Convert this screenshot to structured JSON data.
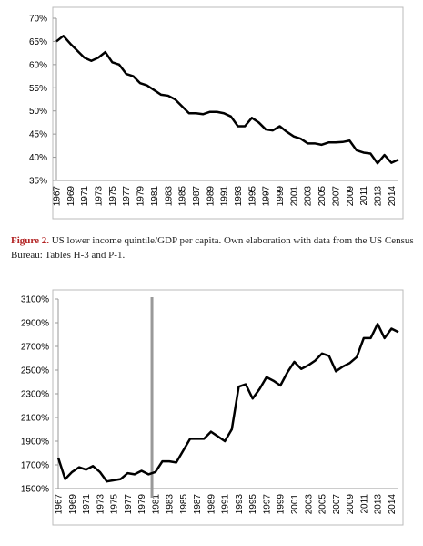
{
  "chart_data": [
    {
      "type": "line",
      "color": "#000000",
      "categories": [
        "1967",
        null,
        "1969",
        null,
        "1971",
        null,
        "1973",
        null,
        "1975",
        null,
        "1977",
        null,
        "1979",
        null,
        "1981",
        null,
        "1983",
        null,
        "1985",
        null,
        "1987",
        null,
        "1989",
        null,
        "1991",
        null,
        "1993",
        null,
        "1995",
        null,
        "1997",
        null,
        "1999",
        null,
        "2001",
        null,
        "2003",
        null,
        "2005",
        null,
        "2007",
        null,
        "2009",
        null,
        "2011",
        null,
        "2013",
        null,
        "2014",
        null
      ],
      "values": [
        65,
        66.2,
        64.5,
        63,
        61.5,
        60.8,
        61.5,
        62.7,
        60.5,
        60,
        58,
        57.5,
        56,
        55.5,
        54.5,
        53.5,
        53.3,
        52.5,
        51,
        49.5,
        49.5,
        49.3,
        49.8,
        49.8,
        49.5,
        48.8,
        46.7,
        46.7,
        48.5,
        47.5,
        46,
        45.8,
        46.7,
        45.5,
        44.5,
        44,
        43,
        43,
        42.7,
        43.2,
        43.2,
        43.3,
        43.6,
        41.5,
        41,
        40.8,
        38.7,
        40.5,
        38.8,
        39.5
      ],
      "ylim": [
        35,
        70
      ],
      "yticks": [
        {
          "value": 35,
          "label": "35%"
        },
        {
          "value": 40,
          "label": "40%"
        },
        {
          "value": 45,
          "label": "45%"
        },
        {
          "value": 50,
          "label": "50%"
        },
        {
          "value": 55,
          "label": "55%"
        },
        {
          "value": 60,
          "label": "60%"
        },
        {
          "value": 65,
          "label": "65%"
        },
        {
          "value": 70,
          "label": "70%"
        }
      ]
    },
    {
      "type": "line",
      "color": "#000000",
      "categories": [
        "1967",
        null,
        "1969",
        null,
        "1971",
        null,
        "1973",
        null,
        "1975",
        null,
        "1977",
        null,
        "1979",
        null,
        "1981",
        null,
        "1983",
        null,
        "1985",
        null,
        "1987",
        null,
        "1989",
        null,
        "1991",
        null,
        "1993",
        null,
        "1995",
        null,
        "1997",
        null,
        "1999",
        null,
        "2001",
        null,
        "2003",
        null,
        "2005",
        null,
        "2007",
        null,
        "2009",
        null,
        "2011",
        null,
        "2013",
        null,
        "2014",
        null
      ],
      "values": [
        1760,
        1580,
        1640,
        1680,
        1660,
        1690,
        1640,
        1560,
        1570,
        1580,
        1630,
        1620,
        1650,
        1620,
        1640,
        1730,
        1730,
        1720,
        1820,
        1920,
        1920,
        1920,
        1980,
        1940,
        1900,
        2000,
        2360,
        2380,
        2260,
        2340,
        2440,
        2410,
        2370,
        2480,
        2570,
        2510,
        2540,
        2580,
        2640,
        2620,
        2490,
        2530,
        2560,
        2610,
        2770,
        2770,
        2890,
        2770,
        2850,
        2820
      ],
      "ylim": [
        1500,
        3100
      ],
      "yticks": [
        {
          "value": 1500,
          "label": "1500%"
        },
        {
          "value": 1700,
          "label": "1700%"
        },
        {
          "value": 1900,
          "label": "1900%"
        },
        {
          "value": 2100,
          "label": "2100%"
        },
        {
          "value": 2300,
          "label": "2300%"
        },
        {
          "value": 2500,
          "label": "2500%"
        },
        {
          "value": 2700,
          "label": "2700%"
        },
        {
          "value": 2900,
          "label": "2900%"
        },
        {
          "value": 3100,
          "label": "3100%"
        }
      ]
    }
  ],
  "caption": {
    "label": "Figure 2.",
    "text": "US lower income quintile/GDP per capita. Own elaboration with data from the US Census Bureau: Tables H-3 and P-1."
  }
}
